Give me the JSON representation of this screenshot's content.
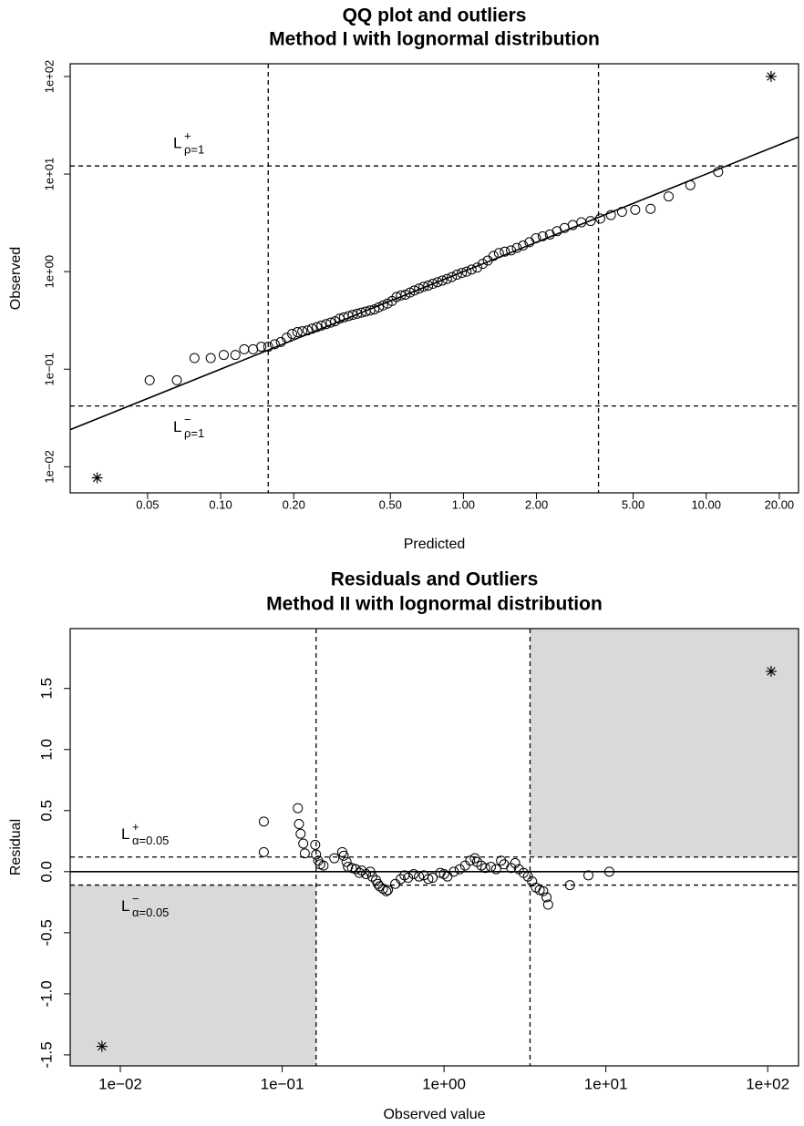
{
  "chart_data": [
    {
      "type": "scatter",
      "title": "QQ plot and outliers",
      "subtitle": "Method I with lognormal distribution",
      "x_label": "Predicted",
      "y_label": "Observed",
      "xlog": true,
      "ylog": true,
      "xlim": [
        0.024,
        24
      ],
      "ylim": [
        0.0054,
        135
      ],
      "xticks": [
        0.05,
        {
          "value": 0.1,
          "label": "0.10"
        },
        {
          "value": 0.2,
          "label": "0.20"
        },
        {
          "value": 0.5,
          "label": "0.50"
        },
        {
          "value": 1,
          "label": "1.00"
        },
        {
          "value": 2,
          "label": "2.00"
        },
        {
          "value": 5,
          "label": "5.00"
        },
        {
          "value": 10,
          "label": "10.00"
        },
        {
          "value": 20,
          "label": "20.00"
        }
      ],
      "yticks": [
        {
          "value": 0.01,
          "label": "1e−02"
        },
        {
          "value": 0.1,
          "label": "1e−01"
        },
        {
          "value": 1,
          "label": "1e+00"
        },
        {
          "value": 10,
          "label": "1e+01"
        },
        {
          "value": 100,
          "label": "1e+02"
        }
      ],
      "color": "#000000",
      "points": {
        "x": [
          0.051,
          0.066,
          0.078,
          0.091,
          0.103,
          0.115,
          0.125,
          0.136,
          0.147,
          0.157,
          0.167,
          0.177,
          0.187,
          0.197,
          0.207,
          0.217,
          0.228,
          0.238,
          0.249,
          0.26,
          0.272,
          0.284,
          0.296,
          0.309,
          0.322,
          0.336,
          0.35,
          0.365,
          0.38,
          0.396,
          0.413,
          0.43,
          0.448,
          0.467,
          0.487,
          0.508,
          0.53,
          0.553,
          0.577,
          0.602,
          0.628,
          0.656,
          0.685,
          0.716,
          0.748,
          0.782,
          0.818,
          0.856,
          0.896,
          0.94,
          0.985,
          1.03,
          1.08,
          1.14,
          1.2,
          1.26,
          1.33,
          1.4,
          1.48,
          1.57,
          1.66,
          1.76,
          1.87,
          1.99,
          2.12,
          2.27,
          2.43,
          2.61,
          2.82,
          3.06,
          3.34,
          3.66,
          4.05,
          4.5,
          5.1,
          5.9,
          7.0,
          8.6,
          11.2
        ],
        "y": [
          0.077,
          0.077,
          0.13,
          0.13,
          0.14,
          0.14,
          0.16,
          0.16,
          0.17,
          0.17,
          0.18,
          0.19,
          0.21,
          0.23,
          0.24,
          0.245,
          0.25,
          0.26,
          0.27,
          0.28,
          0.29,
          0.3,
          0.31,
          0.33,
          0.34,
          0.35,
          0.36,
          0.37,
          0.38,
          0.39,
          0.4,
          0.41,
          0.43,
          0.45,
          0.47,
          0.5,
          0.55,
          0.57,
          0.58,
          0.61,
          0.64,
          0.67,
          0.7,
          0.72,
          0.75,
          0.78,
          0.81,
          0.84,
          0.88,
          0.93,
          0.97,
          1.0,
          1.05,
          1.1,
          1.2,
          1.3,
          1.45,
          1.55,
          1.6,
          1.65,
          1.75,
          1.85,
          2.0,
          2.2,
          2.3,
          2.4,
          2.6,
          2.8,
          3.0,
          3.2,
          3.3,
          3.5,
          3.8,
          4.1,
          4.3,
          4.4,
          5.9,
          7.7,
          10.5
        ]
      },
      "outliers": {
        "x": [
          0.031,
          18.5
        ],
        "y": [
          0.0077,
          100
        ]
      },
      "fit_line": {
        "x": [
          0.024,
          24
        ],
        "y": [
          0.024,
          24
        ]
      },
      "vlines": [
        0.157,
        3.6
      ],
      "hlines": [
        12.1,
        0.042
      ],
      "band_labels": [
        {
          "text": "L",
          "sup": "+",
          "sub": "ρ=1"
        },
        {
          "text": "L",
          "sup": "−",
          "sub": "ρ=1"
        }
      ]
    },
    {
      "type": "scatter",
      "title": "Residuals and Outliers",
      "subtitle": "Method II with lognormal distribution",
      "x_label": "Observed value",
      "y_label": "Residual",
      "xlog": true,
      "ylog": false,
      "xlim": [
        0.0049,
        155
      ],
      "ylim": [
        -1.59,
        1.99
      ],
      "xticks": [
        {
          "value": 0.01,
          "label": "1e−02"
        },
        {
          "value": 0.1,
          "label": "1e−01"
        },
        {
          "value": 1,
          "label": "1e+00"
        },
        {
          "value": 10,
          "label": "1e+01"
        },
        {
          "value": 100,
          "label": "1e+02"
        }
      ],
      "yticks": [
        -1.5,
        {
          "value": -1,
          "label": "-1.0"
        },
        -0.5,
        {
          "value": 0,
          "label": "0.0"
        },
        0.5,
        {
          "value": 1,
          "label": "1.0"
        },
        1.5
      ],
      "color": "#000000",
      "shade_color": "#d9d9d9",
      "points": {
        "x": [
          0.077,
          0.077,
          0.125,
          0.127,
          0.13,
          0.135,
          0.138,
          0.16,
          0.162,
          0.167,
          0.172,
          0.18,
          0.21,
          0.235,
          0.24,
          0.25,
          0.255,
          0.27,
          0.285,
          0.3,
          0.31,
          0.33,
          0.35,
          0.36,
          0.38,
          0.39,
          0.4,
          0.42,
          0.44,
          0.45,
          0.5,
          0.54,
          0.57,
          0.6,
          0.65,
          0.7,
          0.75,
          0.8,
          0.85,
          0.95,
          1.0,
          1.05,
          1.15,
          1.25,
          1.35,
          1.45,
          1.55,
          1.6,
          1.7,
          1.8,
          1.95,
          2.1,
          2.25,
          2.35,
          2.6,
          2.75,
          2.9,
          3.1,
          3.3,
          3.5,
          3.7,
          3.9,
          4.1,
          4.3,
          4.4,
          6.0,
          7.8,
          10.5
        ],
        "y": [
          0.41,
          0.16,
          0.52,
          0.39,
          0.31,
          0.23,
          0.15,
          0.22,
          0.14,
          0.09,
          0.06,
          0.05,
          0.11,
          0.16,
          0.13,
          0.08,
          0.04,
          0.03,
          0.02,
          -0.01,
          0.01,
          -0.02,
          0.0,
          -0.04,
          -0.07,
          -0.1,
          -0.12,
          -0.14,
          -0.16,
          -0.15,
          -0.1,
          -0.06,
          -0.03,
          -0.05,
          -0.02,
          -0.04,
          -0.03,
          -0.06,
          -0.05,
          -0.01,
          -0.02,
          -0.04,
          0.0,
          0.02,
          0.05,
          0.09,
          0.11,
          0.08,
          0.05,
          0.03,
          0.04,
          0.02,
          0.09,
          0.06,
          0.03,
          0.07,
          0.02,
          -0.01,
          -0.04,
          -0.08,
          -0.13,
          -0.15,
          -0.16,
          -0.21,
          -0.27,
          -0.11,
          -0.03,
          0.0
        ]
      },
      "outliers": {
        "x": [
          0.0077,
          105
        ],
        "y": [
          -1.43,
          1.64
        ]
      },
      "zero_line": 0,
      "vlines": [
        0.162,
        3.4
      ],
      "hlines": [
        0.12,
        -0.11
      ],
      "band_labels": [
        {
          "text": "L",
          "sup": "+",
          "sub": "α=0.05"
        },
        {
          "text": "L",
          "sup": "−",
          "sub": "α=0.05"
        }
      ]
    }
  ]
}
